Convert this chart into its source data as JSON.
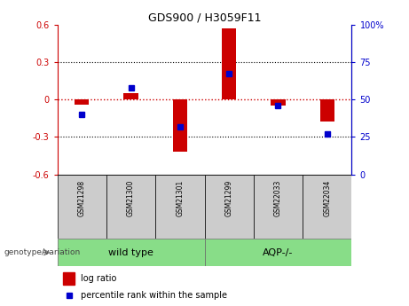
{
  "title": "GDS900 / H3059F11",
  "samples": [
    "GSM21298",
    "GSM21300",
    "GSM21301",
    "GSM21299",
    "GSM22033",
    "GSM22034"
  ],
  "log_ratios": [
    -0.04,
    0.05,
    -0.42,
    0.57,
    -0.05,
    -0.18
  ],
  "percentile_ranks": [
    40,
    58,
    32,
    67,
    46,
    27
  ],
  "left_ylim": [
    -0.6,
    0.6
  ],
  "right_ylim": [
    0,
    100
  ],
  "left_yticks": [
    -0.6,
    -0.3,
    0.0,
    0.3,
    0.6
  ],
  "right_yticks": [
    0,
    25,
    50,
    75,
    100
  ],
  "left_ytick_labels": [
    "-0.6",
    "-0.3",
    "0",
    "0.3",
    "0.6"
  ],
  "right_ytick_labels": [
    "0",
    "25",
    "50",
    "75",
    "100%"
  ],
  "hline_color": "#cc0000",
  "bar_color": "#cc0000",
  "dot_color": "#0000cc",
  "grid_color": "black",
  "sample_box_color": "#cccccc",
  "group_box_color": "#88dd88",
  "left_axis_color": "#cc0000",
  "right_axis_color": "#0000cc",
  "legend_bar_label": "log ratio",
  "legend_dot_label": "percentile rank within the sample",
  "genotype_label": "genotype/variation",
  "wild_type_label": "wild type",
  "aqp_label": "AQP-/-",
  "bar_width": 0.3,
  "dot_size": 5
}
